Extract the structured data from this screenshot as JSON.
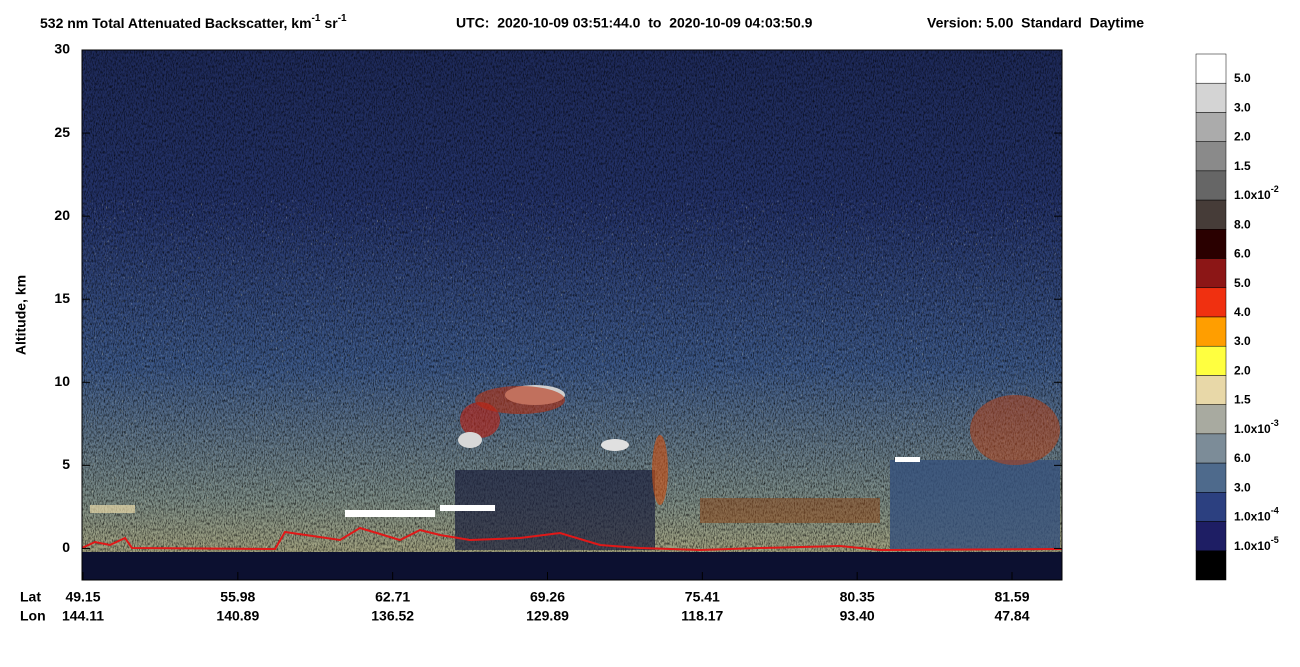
{
  "chart_data": {
    "type": "heatmap",
    "title_parts": [
      "532 nm Total Attenuated Backscatter, km",
      "-1",
      "sr",
      "-1"
    ],
    "time_range": "UTC:  2020-10-09 03:51:44.0  to  2020-10-09 04:03:50.9",
    "version": "Version: 5.00  Standard  Daytime",
    "ylabel": "Altitude, km",
    "ylim": [
      -1.9,
      30
    ],
    "yticks": [
      0,
      5,
      10,
      15,
      20,
      25,
      30
    ],
    "x_rows": [
      {
        "name": "Lat",
        "labels": [
          "49.15",
          "55.98",
          "62.71",
          "69.26",
          "75.41",
          "80.35",
          "81.59"
        ]
      },
      {
        "name": "Lon",
        "labels": [
          "144.11",
          "140.89",
          "136.52",
          "129.89",
          "118.17",
          "93.40",
          "47.84"
        ]
      }
    ],
    "colorbar": {
      "colors": [
        "#ffffff",
        "#d4d4d4",
        "#ababab",
        "#8a8a8a",
        "#666666",
        "#463c38",
        "#2a0000",
        "#8c1616",
        "#f03010",
        "#ff9e00",
        "#ffff40",
        "#e8d8a8",
        "#a8aaa0",
        "#7c8c98",
        "#4e6a8c",
        "#2c4080",
        "#1e1e64",
        "#000000"
      ],
      "labels": [
        {
          "mantissa": "5.0"
        },
        {
          "mantissa": "3.0"
        },
        {
          "mantissa": "2.0"
        },
        {
          "mantissa": "1.5"
        },
        {
          "mantissa": "1.0x10",
          "exponent": "-2"
        },
        {
          "mantissa": "8.0"
        },
        {
          "mantissa": "6.0"
        },
        {
          "mantissa": "5.0"
        },
        {
          "mantissa": "4.0"
        },
        {
          "mantissa": "3.0"
        },
        {
          "mantissa": "2.0"
        },
        {
          "mantissa": "1.5"
        },
        {
          "mantissa": "1.0x10",
          "exponent": "-3"
        },
        {
          "mantissa": "6.0"
        },
        {
          "mantissa": "3.0"
        },
        {
          "mantissa": "1.0x10",
          "exponent": "-4"
        },
        {
          "mantissa": "1.0x10",
          "exponent": "-5"
        }
      ]
    }
  }
}
